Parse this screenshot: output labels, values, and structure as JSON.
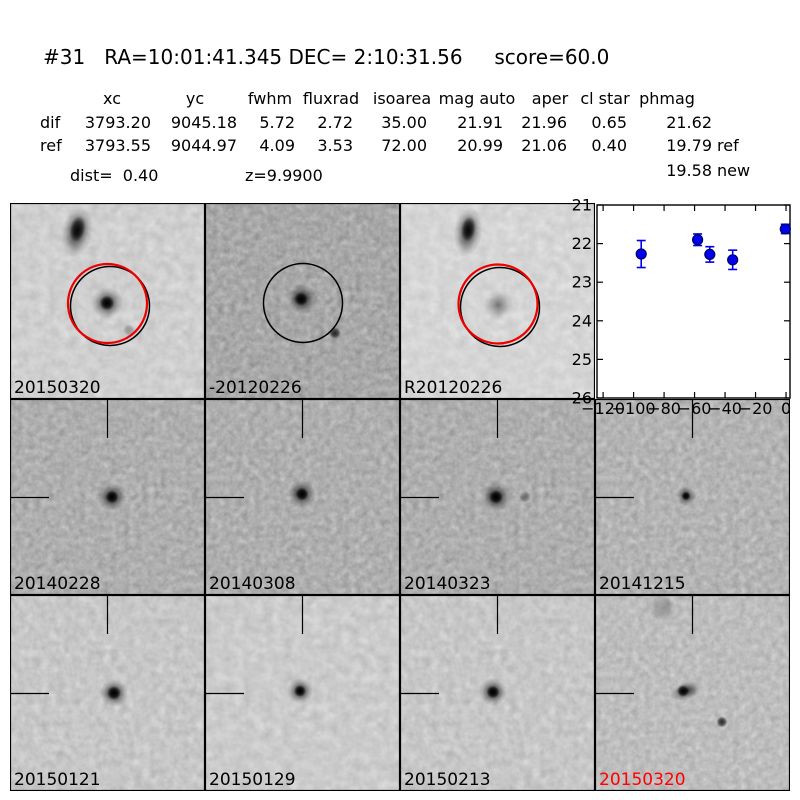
{
  "header": {
    "title": "#31   RA=10:01:41.345 DEC= 2:10:31.56     score=60.0",
    "object_id": "#31",
    "ra": "10:01:41.345",
    "dec": "2:10:31.56",
    "score": "60.0"
  },
  "table": {
    "column_headers": [
      "xc",
      "yc",
      "fwhm",
      "fluxrad",
      "isoarea",
      "mag auto",
      "aper",
      "cl star",
      "phmag"
    ],
    "rows": [
      {
        "label": "dif",
        "values": [
          "3793.20",
          "9045.18",
          "5.72",
          "2.72",
          "35.00",
          "21.91",
          "21.96",
          "0.65",
          "21.62"
        ],
        "suffix": ""
      },
      {
        "label": "ref",
        "values": [
          "3793.55",
          "9044.97",
          "4.09",
          "3.53",
          "72.00",
          "20.99",
          "21.06",
          "0.40",
          "19.79"
        ],
        "suffix": "ref"
      },
      {
        "label": "",
        "values": [
          "",
          "",
          "",
          "",
          "",
          "",
          "",
          "",
          "19.58"
        ],
        "suffix": "new"
      }
    ],
    "dist_text": "dist=  0.40",
    "z_text": "z=9.9900"
  },
  "panels": [
    {
      "label": "20150320",
      "label_color": "#000000"
    },
    {
      "label": "-20120226",
      "label_color": "#000000"
    },
    {
      "label": "R20120226",
      "label_color": "#000000"
    },
    {
      "label": "20140228",
      "label_color": "#000000"
    },
    {
      "label": "20140308",
      "label_color": "#000000"
    },
    {
      "label": "20140323",
      "label_color": "#000000"
    },
    {
      "label": "20141215",
      "label_color": "#000000"
    },
    {
      "label": "20150121",
      "label_color": "#000000"
    },
    {
      "label": "20150129",
      "label_color": "#000000"
    },
    {
      "label": "20150213",
      "label_color": "#000000"
    },
    {
      "label": "20150320",
      "label_color": "#ff0000"
    }
  ],
  "chart_data": {
    "type": "scatter",
    "title": "",
    "xlabel": "",
    "ylabel": "",
    "x": [
      -95,
      -58,
      -50,
      -35,
      -0.5
    ],
    "y": [
      22.27,
      21.9,
      22.28,
      22.42,
      21.62
    ],
    "yerr": [
      0.35,
      0.15,
      0.2,
      0.25,
      0.12
    ],
    "xlim": [
      -124,
      2.6
    ],
    "ylim": [
      26,
      21
    ],
    "y_inverted": true,
    "xticks": [
      -120,
      -100,
      -80,
      -60,
      -40,
      -20,
      0
    ],
    "xtick_labels": [
      "−120",
      "−100",
      "−80",
      "−60",
      "−40",
      "−20",
      "0"
    ],
    "yticks": [
      21,
      22,
      23,
      24,
      25,
      26
    ],
    "ytick_labels": [
      "21",
      "22",
      "23",
      "24",
      "25",
      "26"
    ],
    "grid": false,
    "legend": null,
    "marker_color": "#0000ee",
    "marker_edge_color": "#000066"
  },
  "colors": {
    "aperture_circle_red": "#ee0000",
    "aperture_circle_black": "#000000",
    "background": "#ffffff"
  }
}
